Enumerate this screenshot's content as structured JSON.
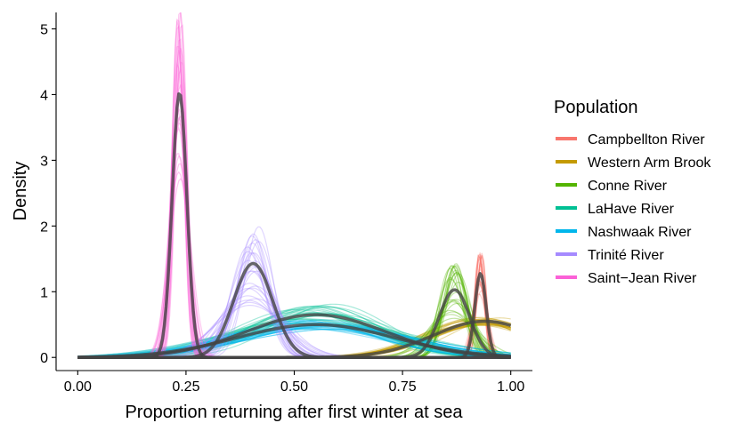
{
  "chart_data": {
    "type": "line",
    "title": "",
    "xlabel": "Proportion returning after first winter at sea",
    "ylabel": "Density",
    "xlim": [
      -0.05,
      1.05
    ],
    "ylim": [
      -0.2,
      5.25
    ],
    "x_ticks": [
      "0.00",
      "0.25",
      "0.50",
      "0.75",
      "1.00"
    ],
    "x_tick_values": [
      0.0,
      0.25,
      0.5,
      0.75,
      1.0
    ],
    "y_ticks": [
      "0",
      "1",
      "2",
      "3",
      "4",
      "5"
    ],
    "y_tick_values": [
      0,
      1,
      2,
      3,
      4,
      5
    ],
    "grid": false,
    "legend": {
      "title": "Population",
      "position": "right",
      "entries": [
        {
          "name": "Campbellton River",
          "color": "#F8766D"
        },
        {
          "name": "Western Arm Brook",
          "color": "#C49A00"
        },
        {
          "name": "Conne River",
          "color": "#53B400"
        },
        {
          "name": "LaHave River",
          "color": "#00C094"
        },
        {
          "name": "Nashwaak River",
          "color": "#00B6EB"
        },
        {
          "name": "Trinité River",
          "color": "#A58AFF"
        },
        {
          "name": "Saint−Jean River",
          "color": "#FB61D7"
        }
      ]
    },
    "series": [
      {
        "name": "Campbellton River",
        "color": "#F8766D",
        "mode": 0.93,
        "sd": 0.013,
        "peak": 1.28,
        "draw_spread": 0.25
      },
      {
        "name": "Western Arm Brook",
        "color": "#C49A00",
        "mode": 0.94,
        "sd": 0.12,
        "peak": 0.55,
        "draw_spread": 0.12
      },
      {
        "name": "Conne River",
        "color": "#53B400",
        "mode": 0.87,
        "sd": 0.035,
        "peak": 1.03,
        "draw_spread": 0.45
      },
      {
        "name": "LaHave River",
        "color": "#00C094",
        "mode": 0.55,
        "sd": 0.16,
        "peak": 0.65,
        "draw_spread": 0.25
      },
      {
        "name": "Nashwaak River",
        "color": "#00B6EB",
        "mode": 0.55,
        "sd": 0.18,
        "peak": 0.5,
        "draw_spread": 0.15
      },
      {
        "name": "Trinité River",
        "color": "#A58AFF",
        "mode": 0.405,
        "sd": 0.045,
        "peak": 1.43,
        "draw_spread": 0.45
      },
      {
        "name": "Saint−Jean River",
        "color": "#FB61D7",
        "mode": 0.235,
        "sd": 0.017,
        "peak": 4.03,
        "draw_spread": 0.35
      }
    ]
  }
}
